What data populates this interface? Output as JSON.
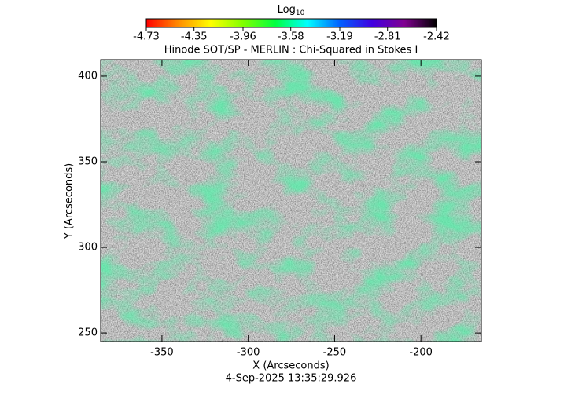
{
  "chart_data": {
    "type": "heatmap",
    "title": "Hinode SOT/SP - MERLIN : Chi-Squared in Stokes I",
    "xlabel": "X (Arcseconds)",
    "ylabel": "Y (Arcseconds)",
    "footer": "4-Sep-2025 13:35:29.926",
    "xlim": [
      -385.5,
      -165
    ],
    "xticks": [
      -350,
      -300,
      -250,
      -200
    ],
    "ylim": [
      245,
      409.6
    ],
    "yticks": [
      250,
      300,
      350,
      400
    ],
    "colorbar": {
      "label": "Log",
      "label_subscript": "10",
      "lim": [
        -4.73,
        -2.42
      ],
      "ticks": [
        -4.73,
        -4.35,
        -3.96,
        -3.58,
        -3.19,
        -2.81,
        -2.42
      ],
      "colors": [
        "#ff0000",
        "#ff8c00",
        "#ffff00",
        "#80ff00",
        "#00ff40",
        "#00ffff",
        "#0060ff",
        "#4000e0",
        "#800090",
        "#000000"
      ]
    }
  }
}
